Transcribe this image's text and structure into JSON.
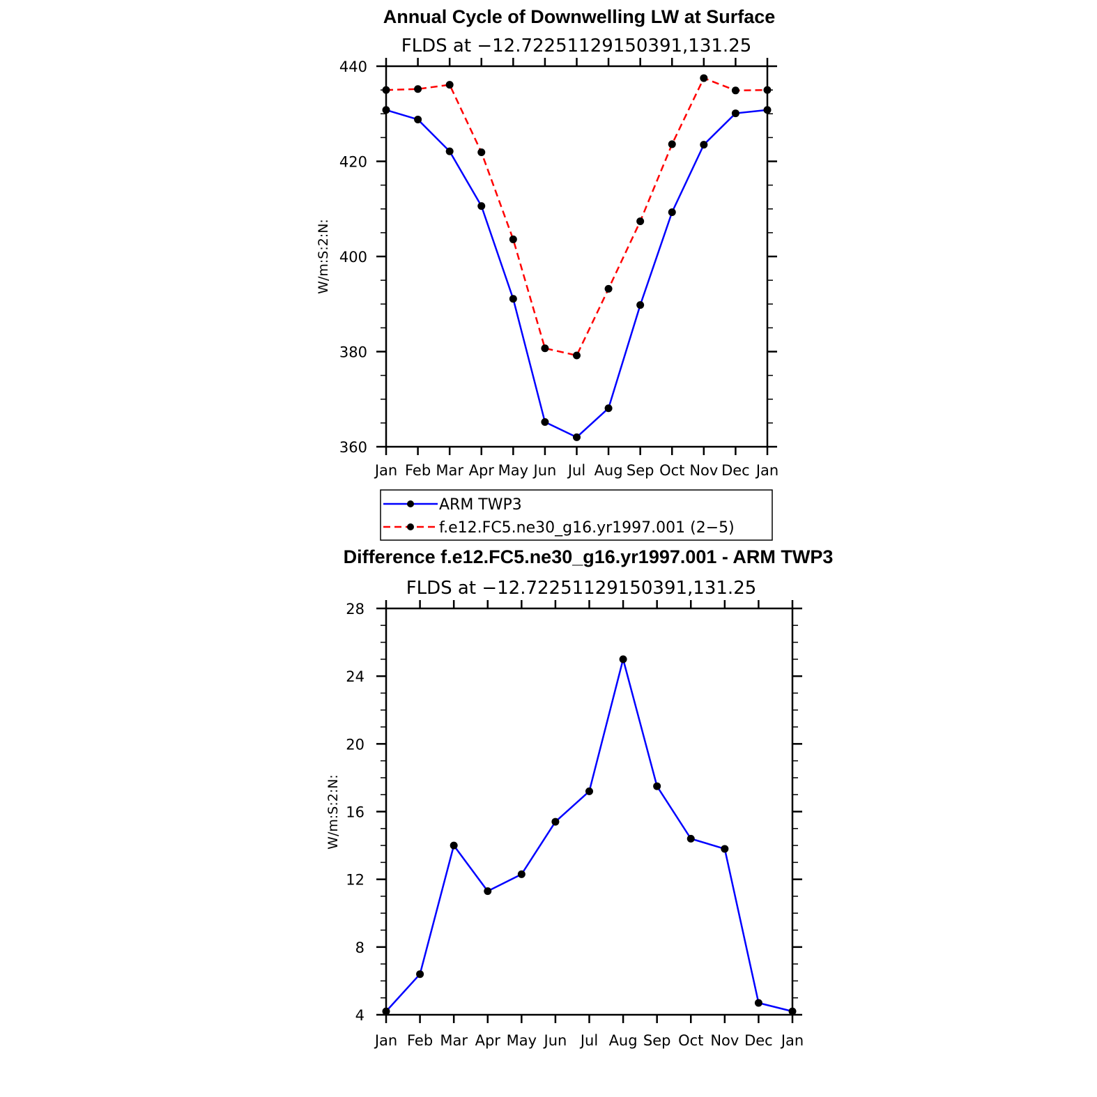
{
  "chart_data": [
    {
      "type": "line",
      "title": "Annual Cycle of Downwelling LW at Surface",
      "subtitle": "FLDS at −12.72251129150391,131.25",
      "ylabel": "W/m:S:2:N:",
      "xlabel": "",
      "categories": [
        "Jan",
        "Feb",
        "Mar",
        "Apr",
        "May",
        "Jun",
        "Jul",
        "Aug",
        "Sep",
        "Oct",
        "Nov",
        "Dec",
        "Jan"
      ],
      "ylim": [
        360,
        440
      ],
      "yticks": [
        360,
        380,
        400,
        420,
        440
      ],
      "series": [
        {
          "name": "ARM TWP3",
          "color": "#0000ff",
          "style": "solid",
          "values": [
            430.8,
            428.8,
            422.1,
            410.6,
            391.1,
            365.2,
            362.0,
            368.1,
            389.8,
            409.3,
            423.5,
            430.1,
            430.8
          ]
        },
        {
          "name": "f.e12.FC5.ne30_g16.yr1997.001 (2−5)",
          "color": "#ff0000",
          "style": "dashed",
          "values": [
            435.0,
            435.2,
            436.1,
            421.9,
            403.6,
            380.7,
            379.2,
            393.2,
            407.4,
            423.6,
            437.5,
            434.9,
            435.0
          ]
        }
      ],
      "legend": {
        "position": "below",
        "entries": [
          "ARM TWP3",
          "f.e12.FC5.ne30_g16.yr1997.001 (2−5)"
        ]
      }
    },
    {
      "type": "line",
      "title": "Difference f.e12.FC5.ne30_g16.yr1997.001 - ARM TWP3",
      "subtitle": "FLDS at −12.72251129150391,131.25",
      "ylabel": "W/m:S:2:N:",
      "xlabel": "",
      "categories": [
        "Jan",
        "Feb",
        "Mar",
        "Apr",
        "May",
        "Jun",
        "Jul",
        "Aug",
        "Sep",
        "Oct",
        "Nov",
        "Dec",
        "Jan"
      ],
      "ylim": [
        4,
        28
      ],
      "yticks": [
        4,
        8,
        12,
        16,
        20,
        24,
        28
      ],
      "series": [
        {
          "name": "Difference",
          "color": "#0000ff",
          "style": "solid",
          "values": [
            4.2,
            6.4,
            14.0,
            11.3,
            12.3,
            15.4,
            17.2,
            25.0,
            17.5,
            14.4,
            13.8,
            4.7,
            4.2
          ]
        }
      ]
    }
  ]
}
